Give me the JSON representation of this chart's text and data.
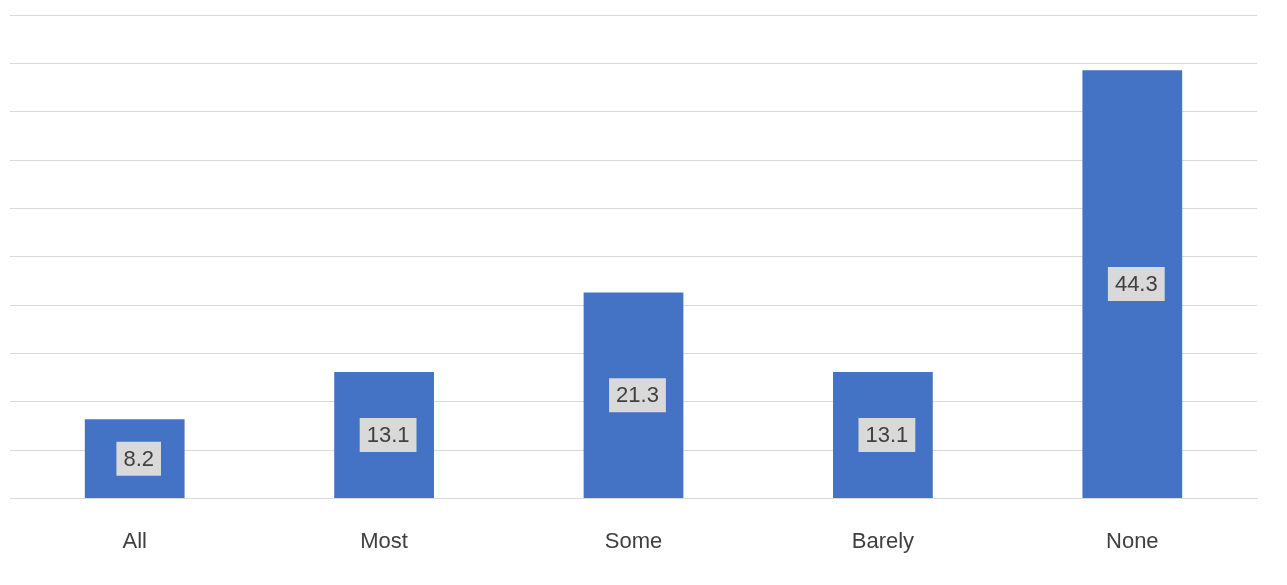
{
  "chart_data": {
    "type": "bar",
    "categories": [
      "All",
      "Most",
      "Some",
      "Barely",
      "None"
    ],
    "values": [
      8.2,
      13.1,
      21.3,
      13.1,
      44.3
    ],
    "color": "#4472c4",
    "ylim": [
      0,
      50
    ],
    "yticks": [
      {
        "value": 0,
        "label": null
      },
      {
        "value": 5,
        "label": null
      },
      {
        "value": 10,
        "label": null
      },
      {
        "value": 15,
        "label": null
      },
      {
        "value": 20,
        "label": null
      },
      {
        "value": 25,
        "label": null
      },
      {
        "value": 30,
        "label": null
      },
      {
        "value": 35,
        "label": null
      },
      {
        "value": 40,
        "label": null
      },
      {
        "value": 45,
        "label": null
      },
      {
        "value": 50,
        "label": null
      }
    ],
    "grid": "y",
    "tick_labels": "x",
    "data_labels": true
  }
}
